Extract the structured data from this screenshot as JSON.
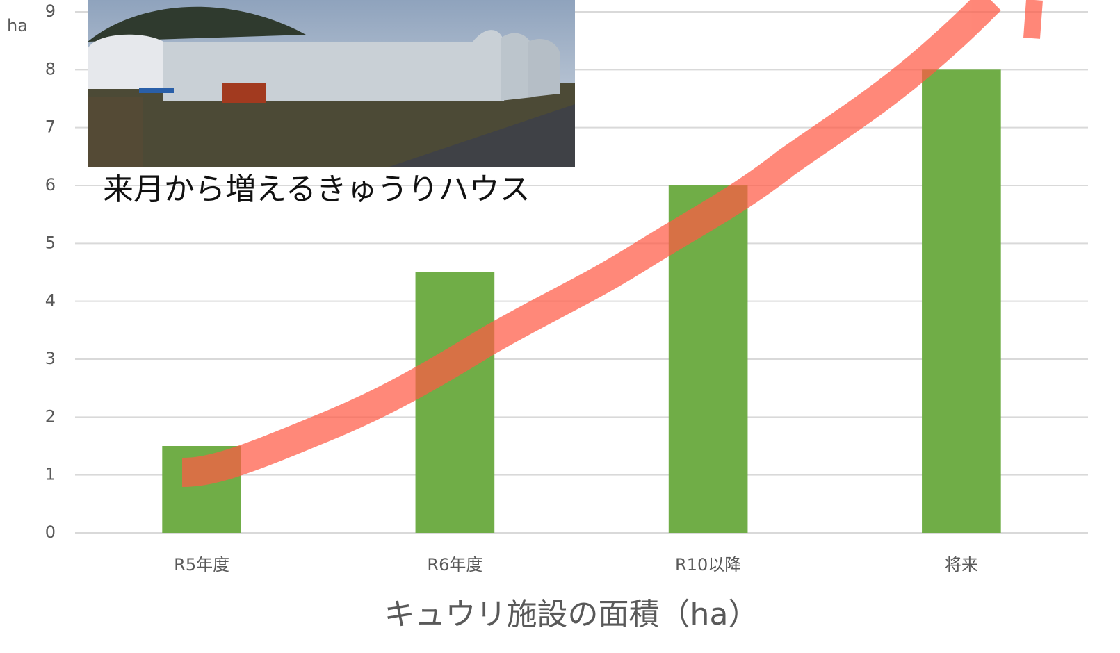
{
  "chart_data": {
    "type": "bar",
    "unit_label": "ha",
    "x_axis_title": "キュウリ施設の面積（ha）",
    "annotation": "来月から増えるきゅうりハウス",
    "categories": [
      "R5年度",
      "R6年度",
      "R10以降",
      "将来"
    ],
    "values": [
      1.5,
      4.5,
      6,
      8
    ],
    "color": "#70ad47",
    "ylim": [
      0,
      9
    ],
    "yticks": [
      0,
      1,
      2,
      3,
      4,
      5,
      6,
      7,
      8,
      9
    ],
    "grid": true
  }
}
